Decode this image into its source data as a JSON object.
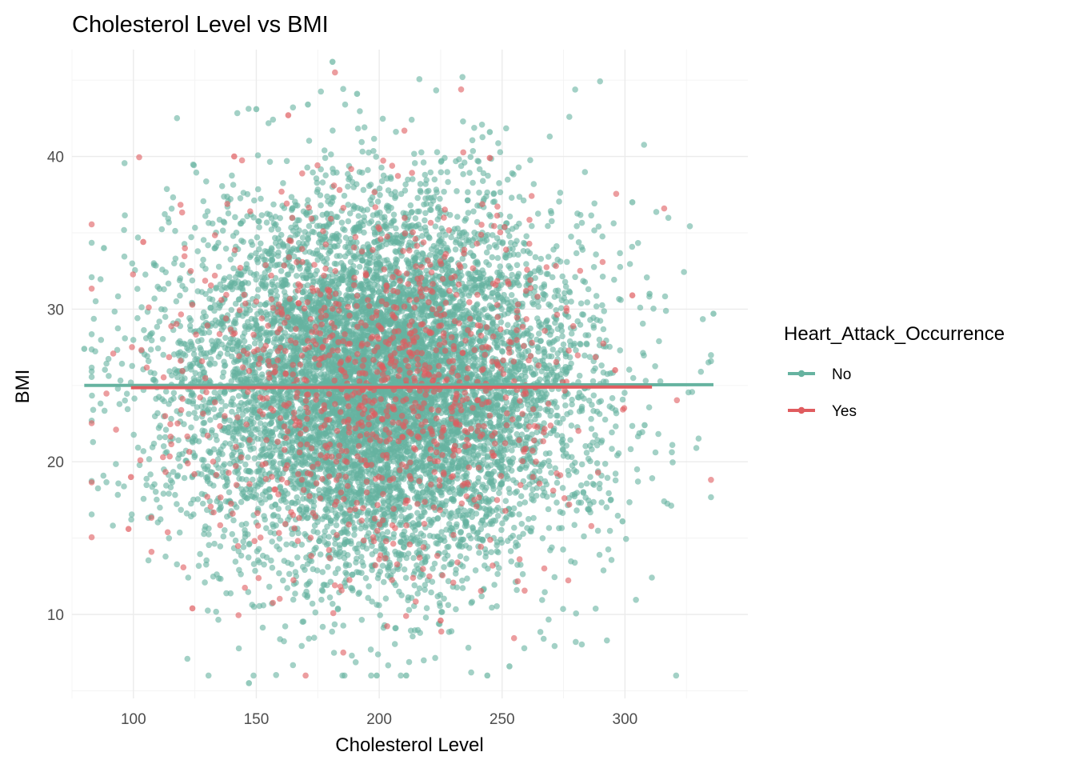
{
  "chart_data": {
    "type": "scatter",
    "title": "Cholesterol Level vs BMI",
    "xlabel": "Cholesterol Level",
    "ylabel": "BMI",
    "xlim": [
      75,
      350
    ],
    "ylim": [
      4.5,
      47
    ],
    "x_ticks": [
      100,
      150,
      200,
      250,
      300
    ],
    "x_tick_labels": [
      "100",
      "150",
      "200",
      "250",
      "300"
    ],
    "y_ticks": [
      10,
      20,
      30,
      40
    ],
    "y_tick_labels": [
      "10",
      "20",
      "30",
      "40"
    ],
    "grid": true,
    "legend": {
      "title": "Heart_Attack_Occurrence",
      "placement": "right"
    },
    "series": [
      {
        "name": "No",
        "color": "#66b3a0",
        "point_count": 9000,
        "x_mean": 200,
        "x_sd": 40,
        "y_mean": 25,
        "y_sd": 6,
        "trend_line": {
          "x": [
            80,
            336
          ],
          "y": [
            25.0,
            25.05
          ]
        },
        "notable_points": [
          {
            "x": 80,
            "y": 27.4
          },
          {
            "x": 88,
            "y": 34.0
          },
          {
            "x": 336,
            "y": 29.7
          },
          {
            "x": 303,
            "y": 37.0
          },
          {
            "x": 181,
            "y": 46.2
          },
          {
            "x": 191,
            "y": 44.1
          },
          {
            "x": 147,
            "y": 5.5
          },
          {
            "x": 199,
            "y": 6.0
          },
          {
            "x": 211,
            "y": 6.0
          },
          {
            "x": 244,
            "y": 6.0
          },
          {
            "x": 253,
            "y": 6.6
          },
          {
            "x": 299,
            "y": 16.1
          },
          {
            "x": 310,
            "y": 31.0
          },
          {
            "x": 308,
            "y": 22.4
          },
          {
            "x": 150,
            "y": 43.1
          },
          {
            "x": 171,
            "y": 43.4
          },
          {
            "x": 245,
            "y": 41.6
          }
        ]
      },
      {
        "name": "Yes",
        "color": "#e05c5f",
        "point_count": 1000,
        "x_mean": 200,
        "x_sd": 40,
        "y_mean": 25,
        "y_sd": 6,
        "trend_line": {
          "x": [
            99,
            311
          ],
          "y": [
            24.85,
            24.9
          ]
        },
        "notable_points": [
          {
            "x": 104,
            "y": 34.4
          },
          {
            "x": 99,
            "y": 19.0
          },
          {
            "x": 98,
            "y": 15.6
          },
          {
            "x": 124,
            "y": 10.4
          },
          {
            "x": 163,
            "y": 42.7
          },
          {
            "x": 141,
            "y": 40.0
          },
          {
            "x": 245,
            "y": 39.9
          },
          {
            "x": 303,
            "y": 30.9
          },
          {
            "x": 296,
            "y": 26.0
          },
          {
            "x": 225,
            "y": 9.6
          }
        ]
      }
    ]
  }
}
